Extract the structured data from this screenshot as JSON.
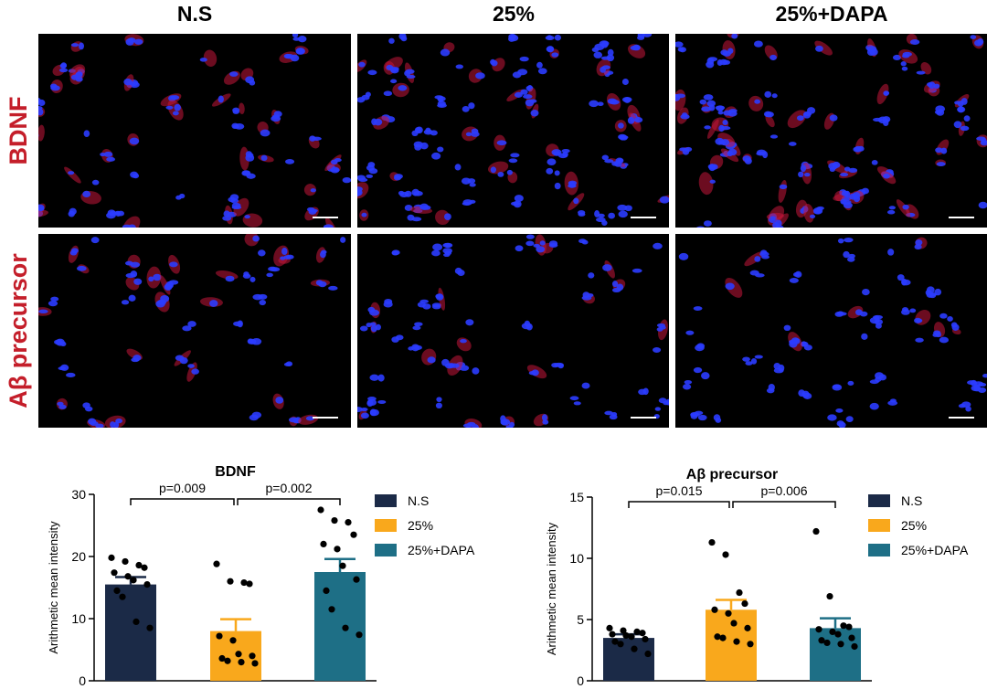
{
  "figure": {
    "column_titles": [
      "N.S",
      "25%",
      "25%+DAPA"
    ],
    "row_labels": [
      "BDNF",
      "Aβ precursor"
    ],
    "colors": {
      "row_label": "#c41e2a",
      "ns": "#1b2a47",
      "p25": "#f9a81c",
      "dapa": "#1e6f86",
      "nucleus": "#2b3cff",
      "stain": "#c4163a"
    }
  },
  "chart_data": [
    {
      "type": "bar",
      "title": "BDNF",
      "xlabel": "",
      "ylabel": "Arithmetic mean intensity",
      "ylim": [
        0,
        30
      ],
      "yticks": [
        "0",
        "10",
        "20",
        "30"
      ],
      "categories": [
        "N.S",
        "25%",
        "25%+DAPA"
      ],
      "values": [
        15.5,
        8.0,
        17.5
      ],
      "sem": [
        1.2,
        1.9,
        2.1
      ],
      "points": [
        [
          19.8,
          19.2,
          18.6,
          18.2,
          17.4,
          16.8,
          16.2,
          15.5,
          14.5,
          13.5,
          9.5,
          8.5
        ],
        [
          18.8,
          16.0,
          15.8,
          15.6,
          7.2,
          6.5,
          4.3,
          4.0,
          3.6,
          3.2,
          3.0,
          2.8
        ],
        [
          27.5,
          25.8,
          25.5,
          23.5,
          22.0,
          21.2,
          18.5,
          16.3,
          14.5,
          11.5,
          8.5,
          7.4
        ]
      ],
      "significance": [
        {
          "from": 0,
          "to": 1,
          "label": "p=0.009"
        },
        {
          "from": 1,
          "to": 2,
          "label": "p=0.002"
        }
      ],
      "legend": [
        "N.S",
        "25%",
        "25%+DAPA"
      ],
      "legend_position": "right"
    },
    {
      "type": "bar",
      "title": "Aβ precursor",
      "xlabel": "",
      "ylabel": "Arithmetic mean intensity",
      "ylim": [
        0,
        15
      ],
      "yticks": [
        "0",
        "5",
        "10",
        "15"
      ],
      "categories": [
        "N.S",
        "25%",
        "25%+DAPA"
      ],
      "values": [
        3.5,
        5.8,
        4.3
      ],
      "sem": [
        0.3,
        0.8,
        0.8
      ],
      "points": [
        [
          4.3,
          4.1,
          4.0,
          3.9,
          3.8,
          3.7,
          3.6,
          3.4,
          3.2,
          3.0,
          2.6,
          2.2
        ],
        [
          11.3,
          10.3,
          7.2,
          6.3,
          5.8,
          5.5,
          4.7,
          4.3,
          3.6,
          3.5,
          3.2,
          3.0
        ],
        [
          12.2,
          6.9,
          4.5,
          4.4,
          4.2,
          4.0,
          3.8,
          3.5,
          3.3,
          3.1,
          3.0,
          2.8
        ]
      ],
      "significance": [
        {
          "from": 0,
          "to": 1,
          "label": "p=0.015"
        },
        {
          "from": 1,
          "to": 2,
          "label": "p=0.006"
        }
      ],
      "legend": [
        "N.S",
        "25%",
        "25%+DAPA"
      ],
      "legend_position": "right"
    }
  ]
}
